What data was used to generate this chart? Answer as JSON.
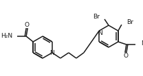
{
  "bg_color": "#ffffff",
  "line_color": "#1a1a1a",
  "line_width": 1.1,
  "figsize": [
    2.08,
    1.11
  ],
  "dpi": 100,
  "xlim": [
    0,
    208
  ],
  "ylim": [
    0,
    111
  ]
}
